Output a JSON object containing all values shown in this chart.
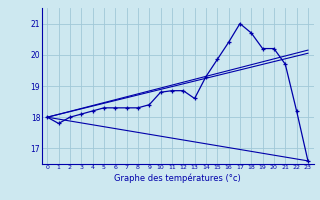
{
  "background_color": "#cde8f0",
  "grid_color": "#a0c8d8",
  "line_color": "#0000aa",
  "title": "Graphe des températures (°c)",
  "xlim": [
    -0.5,
    23.5
  ],
  "ylim": [
    16.5,
    21.5
  ],
  "yticks": [
    17,
    18,
    19,
    20,
    21
  ],
  "xticks": [
    0,
    1,
    2,
    3,
    4,
    5,
    6,
    7,
    8,
    9,
    10,
    11,
    12,
    13,
    14,
    15,
    16,
    17,
    18,
    19,
    20,
    21,
    22,
    23
  ],
  "main_x": [
    0,
    1,
    2,
    3,
    4,
    5,
    6,
    7,
    8,
    9,
    10,
    11,
    12,
    13,
    14,
    15,
    16,
    17,
    18,
    19,
    20,
    21,
    22,
    23
  ],
  "main_y": [
    18.0,
    17.8,
    18.0,
    18.1,
    18.2,
    18.3,
    18.3,
    18.3,
    18.3,
    18.4,
    18.8,
    18.85,
    18.85,
    18.6,
    19.3,
    19.85,
    20.4,
    21.0,
    20.7,
    20.2,
    20.2,
    19.7,
    18.2,
    16.6
  ],
  "line1_x": [
    0,
    23
  ],
  "line1_y": [
    18.0,
    20.15
  ],
  "line2_x": [
    0,
    23
  ],
  "line2_y": [
    18.0,
    20.05
  ],
  "line3_x": [
    0,
    23
  ],
  "line3_y": [
    18.0,
    16.6
  ]
}
